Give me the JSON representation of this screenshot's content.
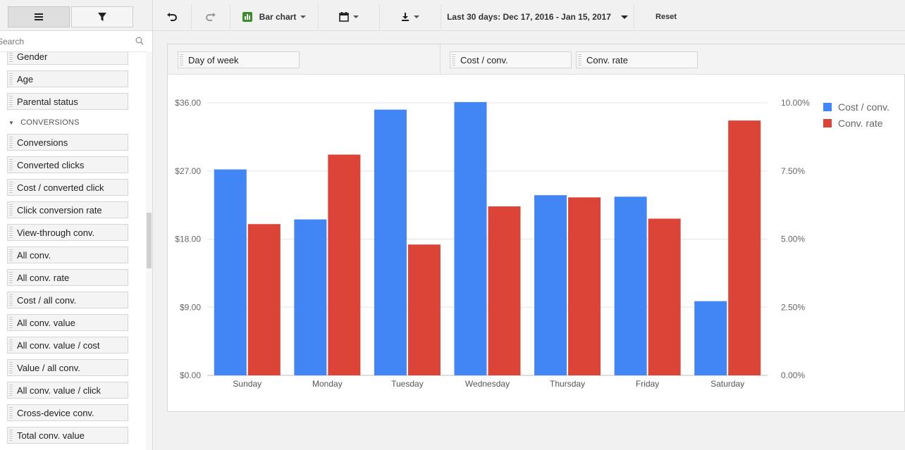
{
  "sidebar": {
    "search_placeholder": "Search",
    "metrics_top": [
      "Gender",
      "Age",
      "Parental status"
    ],
    "section_header": "CONVERSIONS",
    "metrics": [
      "Conversions",
      "Converted clicks",
      "Cost / converted click",
      "Click conversion rate",
      "View-through conv.",
      "All conv.",
      "All conv. rate",
      "Cost / all conv.",
      "All conv. value",
      "All conv. value / cost",
      "Value / all conv.",
      "All conv. value / click",
      "Cross-device conv.",
      "Total conv. value"
    ]
  },
  "toolbar": {
    "chart_type_label": "Bar chart",
    "date_range_label": "Last 30 days: Dec 17, 2016 - Jan 15, 2017",
    "reset_label": "Reset"
  },
  "panel": {
    "dimension": "Day of week",
    "metrics": [
      "Cost / conv.",
      "Conv. rate"
    ]
  },
  "chart_data": {
    "type": "bar",
    "categories": [
      "Sunday",
      "Monday",
      "Tuesday",
      "Wednesday",
      "Thursday",
      "Friday",
      "Saturday"
    ],
    "series": [
      {
        "name": "Cost / conv.",
        "axis": "left",
        "color": "#4285f4",
        "values": [
          27.2,
          20.6,
          35.1,
          36.1,
          23.8,
          23.6,
          9.8
        ]
      },
      {
        "name": "Conv. rate",
        "axis": "right",
        "color": "#db4437",
        "values": [
          0.0555,
          0.081,
          0.048,
          0.062,
          0.0653,
          0.0575,
          0.0935
        ]
      }
    ],
    "y_left": {
      "ylim": [
        0,
        36
      ],
      "ticks": [
        "$0.00",
        "$9.00",
        "$18.00",
        "$27.00",
        "$36.00"
      ]
    },
    "y_right": {
      "ylim": [
        0,
        0.1
      ],
      "ticks": [
        "0.00%",
        "2.50%",
        "5.00%",
        "7.50%",
        "10.00%"
      ]
    },
    "grid": true,
    "legend_position": "top-right"
  }
}
